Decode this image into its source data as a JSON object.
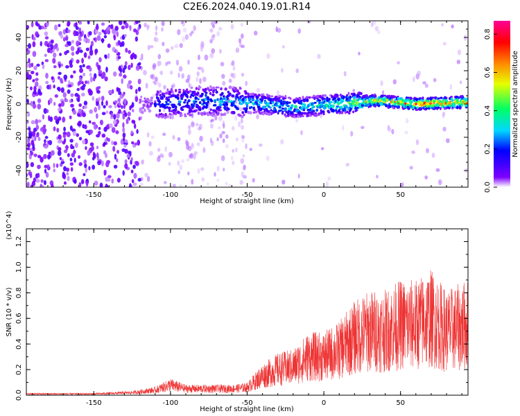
{
  "title": "C2E6.2024.040.19.01.R14",
  "chart_data": [
    {
      "type": "heatmap",
      "xlabel": "Height of straight line (km)",
      "ylabel": "Frequency (Hz)",
      "xlim": [
        -194,
        94
      ],
      "ylim": [
        -50,
        50
      ],
      "xticks": [
        -150,
        -100,
        -50,
        0,
        50
      ],
      "yticks": [
        -40,
        -20,
        0,
        20,
        40
      ],
      "colorbar": {
        "label": "Normalized spectral amplitude",
        "range": [
          0.0,
          0.87
        ],
        "ticks": [
          0.0,
          0.2,
          0.4,
          0.6,
          0.8
        ],
        "colormap": [
          "#ffffff",
          "#7d00ff",
          "#0000ff",
          "#00d7ff",
          "#00ff64",
          "#e6ff00",
          "#ff8c00",
          "#ff0000",
          "#ff0096"
        ]
      },
      "ridge": [
        {
          "x": -110,
          "freq": 0,
          "amp": 0.28
        },
        {
          "x": -80,
          "freq": 2,
          "amp": 0.32
        },
        {
          "x": -50,
          "freq": 1,
          "amp": 0.36
        },
        {
          "x": -20,
          "freq": -2,
          "amp": 0.42
        },
        {
          "x": 10,
          "freq": 0,
          "amp": 0.48
        },
        {
          "x": 35,
          "freq": 2,
          "amp": 0.66
        },
        {
          "x": 60,
          "freq": 0,
          "amp": 0.78
        },
        {
          "x": 90,
          "freq": 1,
          "amp": 0.72
        }
      ]
    },
    {
      "type": "line",
      "ylabel": "SNR (10 * v/v)",
      "xlabel": "Height of straight line (km)",
      "y_multiplier": "(x10^4)",
      "xlim": [
        -194,
        94
      ],
      "ylim": [
        0,
        1.3
      ],
      "xticks": [
        -150,
        -100,
        -50,
        0,
        50
      ],
      "yticks": [
        0.0,
        0.2,
        0.4,
        0.6,
        0.8,
        1.0,
        1.2
      ],
      "ytick_labels": [
        "0.0",
        "0.2",
        "0.4",
        "0.6",
        "0.8",
        "1.0",
        "1.2"
      ],
      "color": "#ee3333",
      "series": [
        {
          "x": [
            -194,
            -175,
            -150,
            -125,
            -110,
            -100,
            -90,
            -75,
            -60,
            -50,
            -40,
            -30,
            -20,
            -10,
            0,
            10,
            20,
            30,
            40,
            50,
            60,
            70,
            80,
            94
          ],
          "y": [
            0.01,
            0.01,
            0.01,
            0.02,
            0.04,
            0.08,
            0.05,
            0.05,
            0.05,
            0.06,
            0.15,
            0.2,
            0.22,
            0.3,
            0.3,
            0.35,
            0.45,
            0.5,
            0.5,
            0.55,
            0.55,
            0.6,
            0.5,
            0.55
          ]
        }
      ]
    }
  ]
}
